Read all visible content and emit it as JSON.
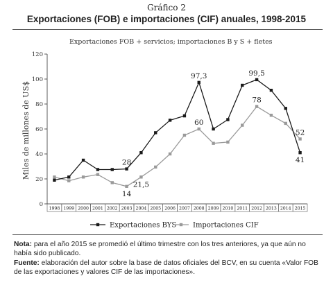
{
  "header": {
    "figure_number": "Gráfico 2",
    "title": "Exportaciones (FOB) e importaciones (CIF) anuales, 1998-2015"
  },
  "notes": {
    "nota_label": "Nota:",
    "nota_text": "para el año 2015 se promedió el último trimestre con los tres anteriores, ya que aún no había sido publicado.",
    "fuente_label": "Fuente:",
    "fuente_text": "elaboración del autor sobre la base de datos oficiales del BCV, en su cuenta «Valor FOB de las exportaciones y valores CIF de las importaciones»."
  },
  "chart_data": {
    "type": "line",
    "subtitle": "Exportaciones FOB + servicios; importaciones B y S + fletes",
    "ylabel": "Miles de millones de US$",
    "xlabel": "",
    "ylim": [
      0,
      120
    ],
    "yticks": [
      "0",
      "20",
      "40",
      "60",
      "80",
      "100",
      "120"
    ],
    "categories": [
      "1998",
      "1999",
      "2000",
      "2001",
      "2002",
      "2003",
      "2004",
      "2005",
      "2006",
      "2007",
      "2008",
      "2009",
      "2010",
      "2011",
      "2012",
      "2013",
      "2014",
      "2015"
    ],
    "series": [
      {
        "name": "Exportaciones BYS",
        "color": "#1a1a1a",
        "marker": "square",
        "values": [
          19,
          21.5,
          35,
          27.5,
          27.5,
          28,
          41,
          57,
          67,
          70.5,
          97.3,
          60,
          67.5,
          95,
          99.5,
          91,
          76.5,
          41
        ]
      },
      {
        "name": "Importaciones CIF",
        "color": "#9a9a9a",
        "marker": "square",
        "values": [
          21.5,
          18.5,
          21.5,
          23.5,
          17,
          14,
          21.5,
          29.5,
          40,
          55,
          60,
          48.5,
          49.5,
          63,
          78,
          71,
          64.5,
          52
        ]
      }
    ],
    "annotations": [
      {
        "series": 0,
        "index": 5,
        "text": "28",
        "pos": "above"
      },
      {
        "series": 0,
        "index": 10,
        "text": "97,3",
        "pos": "above"
      },
      {
        "series": 0,
        "index": 14,
        "text": "99,5",
        "pos": "above"
      },
      {
        "series": 0,
        "index": 17,
        "text": "41",
        "pos": "below"
      },
      {
        "series": 1,
        "index": 5,
        "text": "14",
        "pos": "below"
      },
      {
        "series": 1,
        "index": 6,
        "text": "21,5",
        "pos": "below"
      },
      {
        "series": 1,
        "index": 10,
        "text": "60",
        "pos": "above"
      },
      {
        "series": 1,
        "index": 14,
        "text": "78",
        "pos": "above"
      },
      {
        "series": 1,
        "index": 17,
        "text": "52",
        "pos": "above"
      }
    ],
    "grid": false,
    "legend_position": "bottom"
  }
}
